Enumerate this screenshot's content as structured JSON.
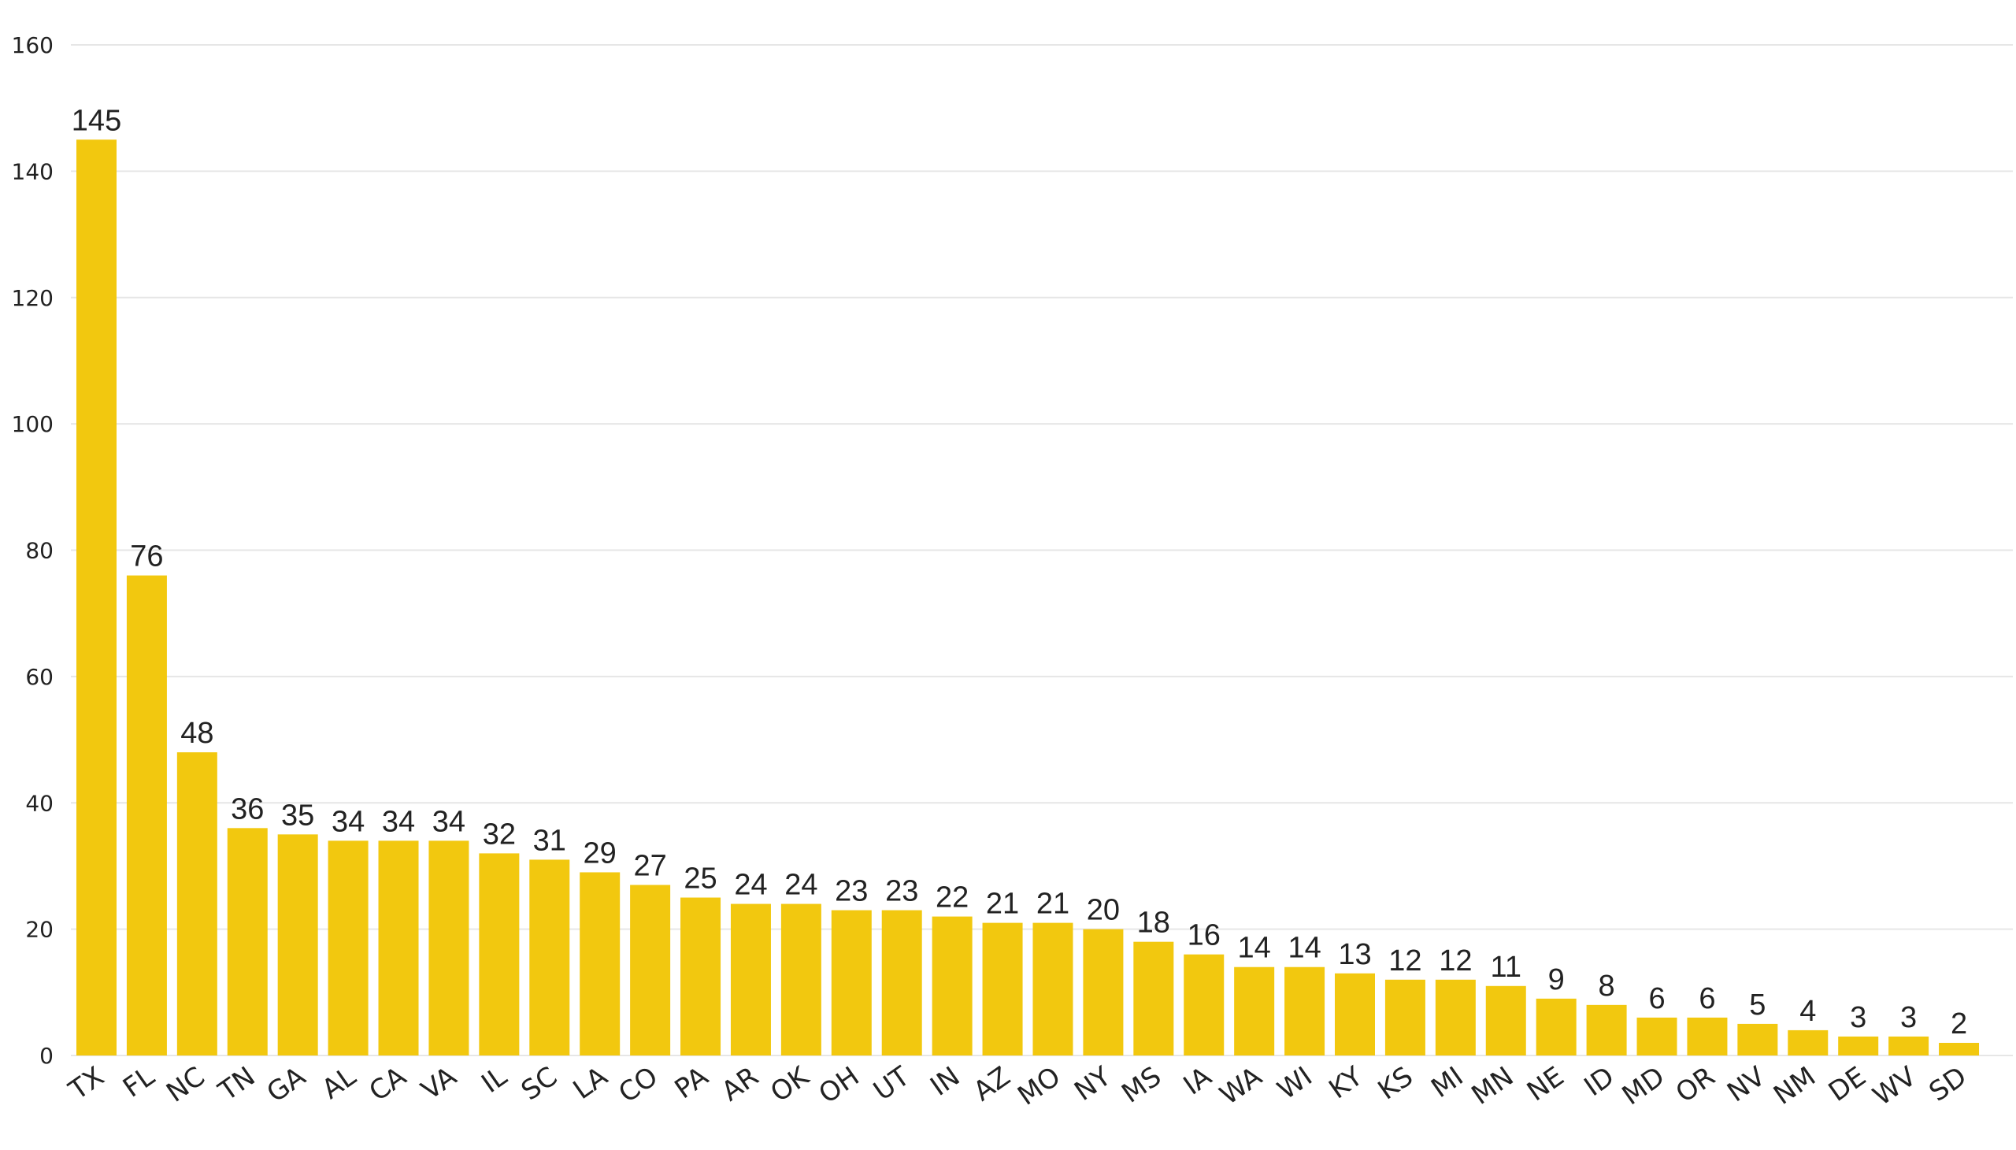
{
  "chart_data": {
    "type": "bar",
    "title": "",
    "xlabel": "",
    "ylabel": "",
    "ylim": [
      0,
      160
    ],
    "yticks": [
      0,
      20,
      40,
      60,
      80,
      100,
      120,
      140,
      160
    ],
    "grid": true,
    "legend": "none",
    "bar_color": "#f2c80f",
    "categories": [
      "TX",
      "FL",
      "NC",
      "TN",
      "GA",
      "AL",
      "CA",
      "VA",
      "IL",
      "SC",
      "LA",
      "CO",
      "PA",
      "AR",
      "OK",
      "OH",
      "UT",
      "IN",
      "AZ",
      "MO",
      "NY",
      "MS",
      "IA",
      "WA",
      "WI",
      "KY",
      "KS",
      "MI",
      "MN",
      "NE",
      "ID",
      "MD",
      "OR",
      "NV",
      "NM",
      "DE",
      "WV",
      "SD"
    ],
    "values": [
      145,
      76,
      48,
      36,
      35,
      34,
      34,
      34,
      32,
      31,
      29,
      27,
      25,
      24,
      24,
      23,
      23,
      22,
      21,
      21,
      20,
      18,
      16,
      14,
      14,
      13,
      12,
      12,
      11,
      9,
      8,
      6,
      6,
      5,
      4,
      3,
      3,
      2
    ],
    "data_labels": true
  }
}
